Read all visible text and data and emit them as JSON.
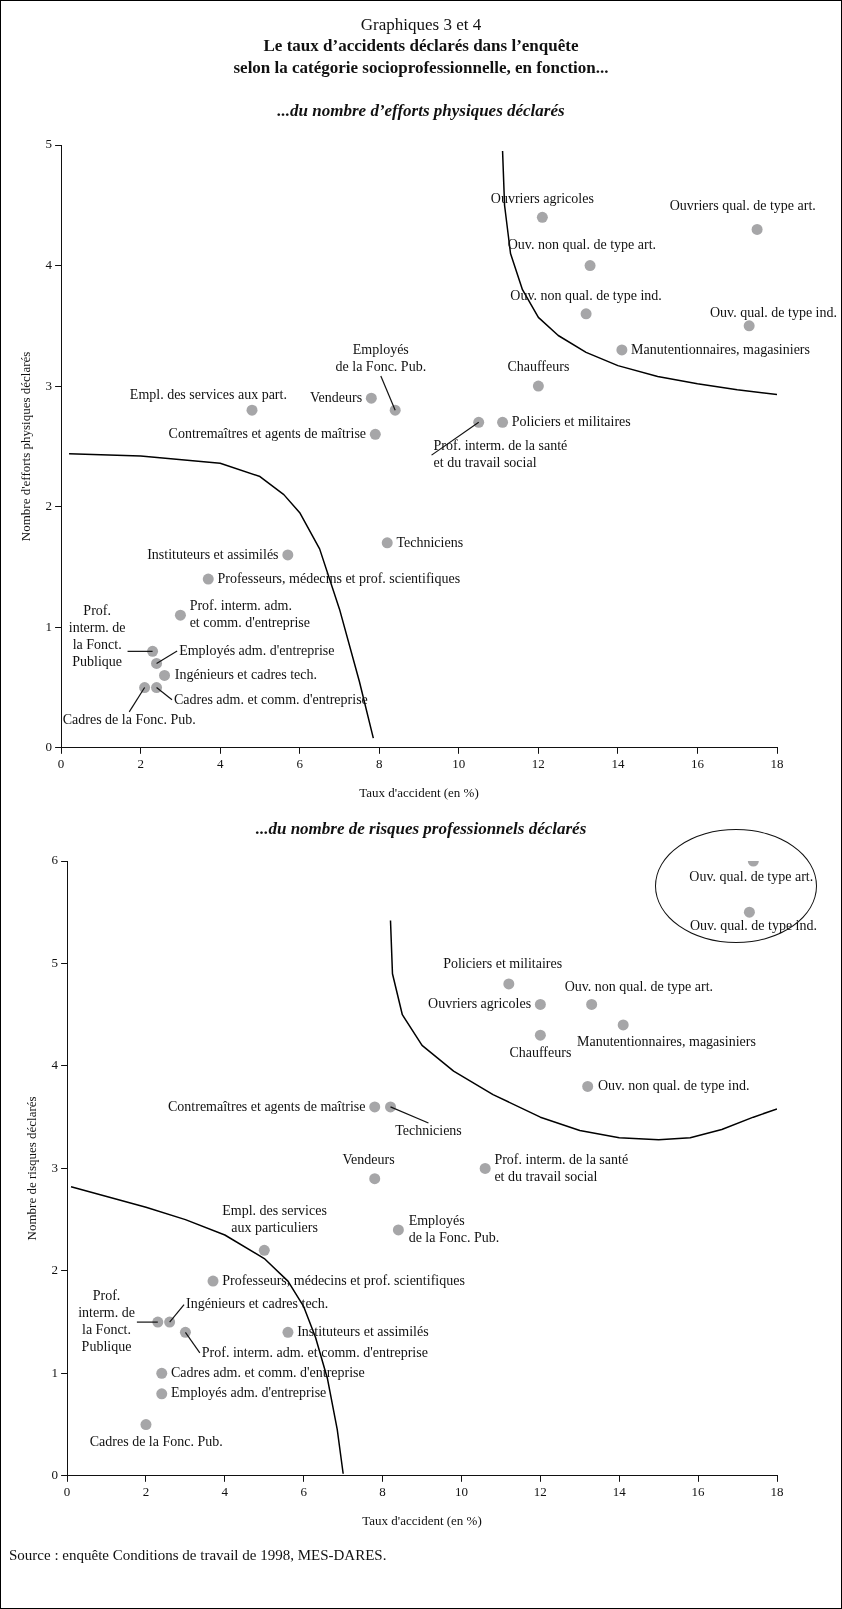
{
  "chart_data": [
    {
      "type": "scatter",
      "title": "Graphiques 3 et 4",
      "subtitle": "Le taux d’accidents déclarés dans l’enquête\nselon la catégorie socioprofessionnelle, en fonction...",
      "annotations": [
        "...du nombre d’efforts physiques déclarés"
      ],
      "xlabel": "Taux d'accident (en %)",
      "ylabel": "Nombre d'efforts physiques déclarés",
      "xlim": [
        0,
        18
      ],
      "xticks": [
        0,
        2,
        4,
        6,
        8,
        10,
        12,
        14,
        16,
        18
      ],
      "ylim": [
        0,
        5
      ],
      "yticks": [
        0,
        1,
        2,
        3,
        4,
        5
      ],
      "grid": false,
      "legend": false,
      "marker": "circle",
      "series": [
        {
          "color": "#a6a6a8",
          "x": [
            12.1,
            17.5,
            13.3,
            13.2,
            17.3,
            14.1,
            12.0,
            11.1,
            10.5,
            8.4,
            7.8,
            4.8,
            7.9,
            8.2,
            5.7,
            3.7,
            3.0,
            2.3,
            2.4,
            2.6,
            2.4,
            2.1
          ],
          "values": [
            4.4,
            4.3,
            4.0,
            3.6,
            3.5,
            3.3,
            3.0,
            2.7,
            2.7,
            2.8,
            2.9,
            2.8,
            2.6,
            1.7,
            1.6,
            1.4,
            1.1,
            0.8,
            0.7,
            0.6,
            0.5,
            0.5
          ],
          "value_labels": [
            "Ouvriers agricoles",
            "Ouvriers qual. de type art.",
            "Ouv. non qual. de type art.",
            "Ouv. non qual. de type ind.",
            "Ouv. qual. de type ind.",
            "Manutentionnaires, magasiniers",
            "Chauffeurs",
            "Policiers et militaires",
            "Prof. interm. de la santé\net du travail social",
            "Employés\nde la Fonc. Pub.",
            "Vendeurs",
            "Empl. des services aux part.",
            "Contremaîtres et agents de maîtrise",
            "Techniciens",
            "Instituteurs et assimilés",
            "Professeurs, médecins et prof. scientifiques",
            "Prof. interm. adm.\net comm. d'entreprise",
            "Prof.\ninterm. de\nla Fonct.\nPublique",
            "Employés adm. d'entreprise",
            "Ingénieurs et cadres tech.",
            "Cadres adm. et comm. d'entreprise",
            "Cadres de la Fonc. Pub."
          ]
        },
        {
          "type": "line",
          "color": "#000000",
          "marker": "none",
          "x": [
            0.2,
            2,
            4,
            5,
            5.6,
            6,
            6.5,
            7,
            7.5,
            7.85
          ],
          "values": [
            2.44,
            2.42,
            2.36,
            2.25,
            2.1,
            1.95,
            1.65,
            1.15,
            0.55,
            0.08
          ]
        },
        {
          "type": "line",
          "color": "#000000",
          "marker": "none",
          "x": [
            11.1,
            11.15,
            11.3,
            11.6,
            12.0,
            12.5,
            13.2,
            14.0,
            15.0,
            16.0,
            17.0,
            18.0
          ],
          "values": [
            4.95,
            4.5,
            4.1,
            3.8,
            3.57,
            3.42,
            3.28,
            3.17,
            3.08,
            3.02,
            2.97,
            2.93
          ]
        }
      ]
    },
    {
      "type": "scatter",
      "title": "...du nombre de risques professionnels déclarés",
      "annotations": [
        "Source : enquête Conditions de travail de 1998, MES-DARES."
      ],
      "xlabel": "Taux d'accident (en %)",
      "ylabel": "Nombre de risques déclarés",
      "xlim": [
        0,
        18
      ],
      "xticks": [
        0,
        2,
        4,
        6,
        8,
        10,
        12,
        14,
        16,
        18
      ],
      "ylim": [
        0,
        6
      ],
      "yticks": [
        0,
        1,
        2,
        3,
        4,
        5,
        6
      ],
      "grid": false,
      "legend": false,
      "marker": "circle",
      "series": [
        {
          "color": "#a6a6a8",
          "x": [
            17.4,
            17.3,
            11.2,
            12.0,
            13.3,
            14.1,
            12.0,
            13.2,
            7.8,
            8.2,
            10.6,
            7.8,
            8.4,
            5.0,
            3.7,
            2.3,
            2.6,
            3.0,
            5.6,
            2.4,
            2.4,
            2.0
          ],
          "values": [
            6.0,
            5.5,
            4.8,
            4.6,
            4.6,
            4.4,
            4.3,
            3.8,
            3.6,
            3.6,
            3.0,
            2.9,
            2.4,
            2.2,
            1.9,
            1.5,
            1.5,
            1.4,
            1.4,
            1.0,
            0.8,
            0.5
          ],
          "value_labels": [
            "Ouv. qual. de type art.",
            "Ouv. qual. de type ind.",
            "Policiers et militaires",
            "Ouvriers agricoles",
            "Ouv. non qual. de type art.",
            "Manutentionnaires, magasiniers",
            "Chauffeurs",
            "Ouv. non qual. de type ind.",
            "Contremaîtres et agents de maîtrise",
            "Techniciens",
            "Prof. interm. de la santé\net du travail social",
            "Vendeurs",
            "Employés\nde la Fonc. Pub.",
            "Empl. des services\naux particuliers",
            "Professeurs, médecins et prof. scientifiques",
            "Prof.\ninterm. de\nla Fonct.\nPublique",
            "Ingénieurs et cadres tech.",
            "Prof. interm. adm. et comm. d'entreprise",
            "Instituteurs et assimilés",
            "Cadres adm. et comm. d'entreprise",
            "Employés adm. d'entreprise",
            "Cadres de la Fonc. Pub."
          ]
        },
        {
          "type": "line",
          "color": "#000000",
          "marker": "none",
          "x": [
            0.1,
            2,
            3,
            4,
            5,
            5.6,
            6.0,
            6.3,
            6.6,
            6.85,
            7.0
          ],
          "values": [
            2.82,
            2.62,
            2.5,
            2.35,
            2.12,
            1.9,
            1.65,
            1.35,
            0.95,
            0.45,
            0.02
          ]
        },
        {
          "type": "line",
          "color": "#000000",
          "marker": "none",
          "x": [
            8.2,
            8.25,
            8.5,
            9.0,
            9.8,
            10.8,
            12.0,
            13.0,
            14.0,
            15.0,
            15.8,
            16.6,
            17.4,
            18.0
          ],
          "values": [
            5.42,
            4.9,
            4.5,
            4.2,
            3.95,
            3.72,
            3.5,
            3.37,
            3.3,
            3.28,
            3.3,
            3.38,
            3.5,
            3.58
          ]
        }
      ]
    }
  ]
}
